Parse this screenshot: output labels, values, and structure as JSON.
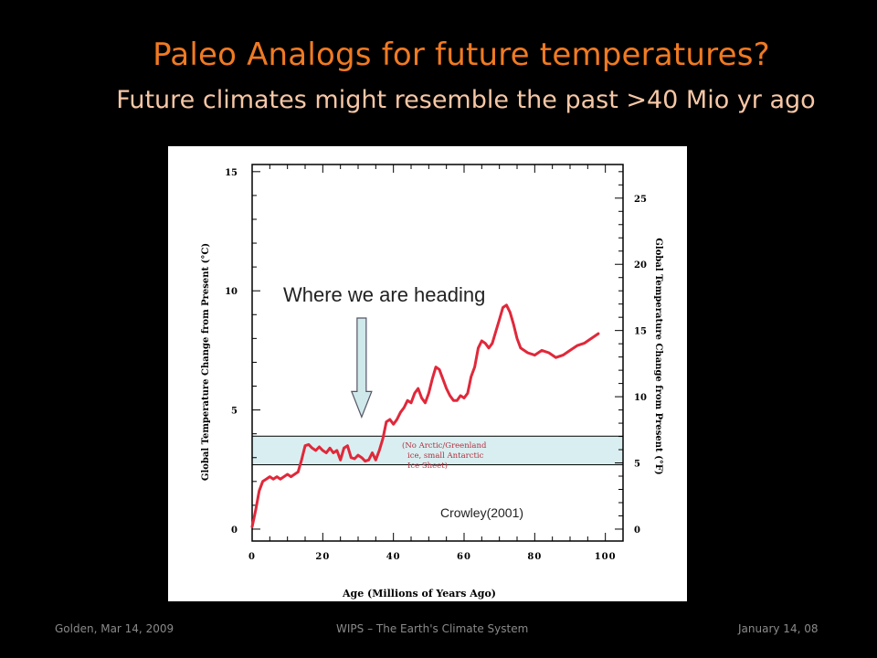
{
  "slide": {
    "title": "Paleo Analogs for future temperatures?",
    "subtitle": "Future climates might resemble the past >40 Mio yr ago"
  },
  "footer": {
    "left": "Golden, Mar 14, 2009",
    "center": "WIPS – The Earth's Climate System",
    "right": "January 14, 08"
  },
  "chart_data": {
    "type": "line",
    "title": "",
    "xlabel": "Age (Millions of Years Ago)",
    "ylabel": "Global Temperature Change from Present (°C)",
    "y2label": "Global Temperature Change from Present (°F)",
    "xlim": [
      0,
      105
    ],
    "ylim": [
      -0.5,
      15.3
    ],
    "y2lim": [
      -0.9,
      27.54
    ],
    "xticks": [
      0,
      20,
      40,
      60,
      80,
      100
    ],
    "xtick_labels": [
      "0",
      "20",
      "40",
      "60",
      "80",
      "100"
    ],
    "yticks": [
      0,
      5,
      10,
      15
    ],
    "ytick_labels": [
      "0",
      "5",
      "10",
      "15"
    ],
    "y2ticks": [
      0,
      5,
      10,
      15,
      20,
      25
    ],
    "y2tick_labels": [
      "0",
      "5",
      "10",
      "15",
      "20",
      "25"
    ],
    "line_color": "#e0283a",
    "series": [
      {
        "x": [
          0,
          1,
          2,
          3,
          4,
          5,
          6,
          7,
          8,
          9,
          10,
          11,
          12,
          13,
          14,
          15,
          16,
          17,
          18,
          19,
          20,
          21,
          22,
          23,
          24,
          25,
          26,
          27,
          28,
          29,
          30,
          31,
          32,
          33,
          34,
          35,
          36,
          37,
          38,
          39,
          40,
          41,
          42,
          43,
          44,
          45,
          46,
          47,
          48,
          49,
          50,
          51,
          52,
          53,
          54,
          55,
          56,
          57,
          58,
          59,
          60,
          61,
          62,
          63,
          64,
          65,
          66,
          67,
          68,
          69,
          70,
          71,
          72,
          73,
          74,
          75,
          76,
          78,
          80,
          82,
          84,
          86,
          88,
          90,
          92,
          94,
          96,
          98
        ],
        "values": [
          0.1,
          0.8,
          1.6,
          2.0,
          2.1,
          2.2,
          2.1,
          2.2,
          2.1,
          2.2,
          2.3,
          2.2,
          2.3,
          2.4,
          2.9,
          3.5,
          3.55,
          3.4,
          3.3,
          3.45,
          3.3,
          3.2,
          3.4,
          3.2,
          3.3,
          2.9,
          3.4,
          3.5,
          3.0,
          2.95,
          3.1,
          3.0,
          2.85,
          2.9,
          3.2,
          2.9,
          3.3,
          3.8,
          4.5,
          4.6,
          4.4,
          4.6,
          4.9,
          5.1,
          5.4,
          5.3,
          5.7,
          5.9,
          5.5,
          5.3,
          5.7,
          6.3,
          6.8,
          6.7,
          6.3,
          5.9,
          5.6,
          5.4,
          5.4,
          5.6,
          5.5,
          5.7,
          6.4,
          6.8,
          7.6,
          7.9,
          7.8,
          7.6,
          7.8,
          8.3,
          8.8,
          9.3,
          9.4,
          9.1,
          8.6,
          8.0,
          7.6,
          7.4,
          7.3,
          7.5,
          7.4,
          7.2,
          7.3,
          7.5,
          7.7,
          7.8,
          8.0,
          8.2
        ]
      }
    ],
    "annotations": [
      {
        "text": "Where we are heading",
        "type": "callout-arrow",
        "arrow_x": 31,
        "arrow_y_end": 4.7
      },
      {
        "text": "(No Arctic/Greenland",
        "type": "note"
      },
      {
        "text": "ice, small Antarctic",
        "type": "note"
      },
      {
        "text": "Ice Sheet)",
        "type": "note"
      },
      {
        "text": "Crowley(2001)",
        "type": "source"
      }
    ],
    "shaded_band": {
      "y_from": 2.7,
      "y_to": 3.9,
      "color": "#d9eef0",
      "label_lines": [
        "(No Arctic/Greenland",
        "ice, small Antarctic",
        "Ice Sheet)"
      ]
    },
    "grid": false,
    "legend": "none"
  }
}
